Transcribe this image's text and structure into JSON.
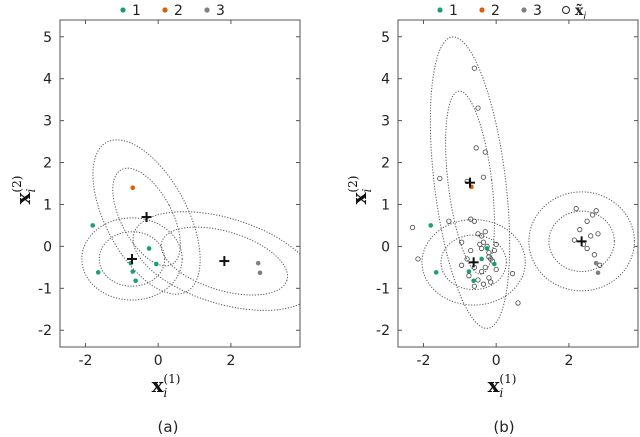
{
  "chart_data": [
    {
      "type": "scatter",
      "caption": "(a)",
      "xlabel": {
        "base": "x",
        "sub": "i",
        "sup": "(1)"
      },
      "ylabel": {
        "base": "x",
        "sub": "i",
        "sup": "(2)"
      },
      "xlim": [
        -2.7,
        3.9
      ],
      "ylim": [
        -2.4,
        5.4
      ],
      "xticks": [
        "-2",
        "0",
        "2"
      ],
      "yticks": [
        "-2",
        "-1",
        "0",
        "1",
        "2",
        "3",
        "4",
        "5"
      ],
      "legend": {
        "position": "top",
        "entries": [
          {
            "label": "1",
            "color": "#1b9e77",
            "marker": "dot"
          },
          {
            "label": "2",
            "color": "#d95f02",
            "marker": "dot"
          },
          {
            "label": "3",
            "color": "#7f7f7f",
            "marker": "dot"
          }
        ]
      },
      "series": [
        {
          "name": "1",
          "color": "#1b9e77",
          "x": [
            -1.8,
            -1.65,
            -0.75,
            -0.7,
            -0.62,
            -0.25,
            -0.05
          ],
          "y": [
            0.5,
            -0.62,
            -0.4,
            -0.6,
            -0.82,
            -0.05,
            -0.42
          ]
        },
        {
          "name": "2",
          "color": "#d95f02",
          "x": [
            -0.7
          ],
          "y": [
            1.4
          ]
        },
        {
          "name": "3",
          "color": "#7f7f7f",
          "x": [
            2.75,
            2.8
          ],
          "y": [
            -0.4,
            -0.63
          ]
        }
      ],
      "centers": [
        {
          "x": -0.72,
          "y": -0.3
        },
        {
          "x": -0.32,
          "y": 0.7
        },
        {
          "x": 1.82,
          "y": -0.35
        }
      ],
      "ellipses": [
        {
          "cx": -0.72,
          "cy": -0.3,
          "rx": 0.9,
          "ry": 0.65,
          "angle": 0
        },
        {
          "cx": -0.72,
          "cy": -0.3,
          "rx": 1.38,
          "ry": 0.98,
          "angle": 0
        },
        {
          "cx": -0.32,
          "cy": 0.7,
          "rx": 0.7,
          "ry": 1.28,
          "angle": -28
        },
        {
          "cx": -0.32,
          "cy": 0.7,
          "rx": 1.12,
          "ry": 2.02,
          "angle": -28
        },
        {
          "cx": 1.82,
          "cy": -0.35,
          "rx": 1.8,
          "ry": 0.7,
          "angle": 17
        },
        {
          "cx": 1.82,
          "cy": -0.35,
          "rx": 2.6,
          "ry": 1.02,
          "angle": 17
        }
      ]
    },
    {
      "type": "scatter",
      "caption": "(b)",
      "xlabel": {
        "base": "x",
        "sub": "i",
        "sup": "(1)"
      },
      "ylabel": {
        "base": "x",
        "sub": "i",
        "sup": "(2)"
      },
      "xlim": [
        -2.7,
        3.9
      ],
      "ylim": [
        -2.4,
        5.4
      ],
      "xticks": [
        "-2",
        "0",
        "2"
      ],
      "yticks": [
        "-2",
        "-1",
        "0",
        "1",
        "2",
        "3",
        "4",
        "5"
      ],
      "legend": {
        "position": "top",
        "entries": [
          {
            "label": "1",
            "color": "#1b9e77",
            "marker": "dot"
          },
          {
            "label": "2",
            "color": "#d95f02",
            "marker": "dot"
          },
          {
            "label": "3",
            "color": "#7f7f7f",
            "marker": "dot"
          },
          {
            "label": "x̃",
            "sub": "i",
            "color": "#222222",
            "marker": "circle"
          }
        ]
      },
      "series": [
        {
          "name": "1",
          "color": "#1b9e77",
          "x": [
            -1.8,
            -1.65,
            -0.75,
            -0.62,
            -0.25,
            -0.05,
            -0.4
          ],
          "y": [
            0.5,
            -0.62,
            -0.6,
            -0.82,
            -0.05,
            -0.42,
            -0.3
          ]
        },
        {
          "name": "2",
          "color": "#d95f02",
          "x": [
            -0.68
          ],
          "y": [
            1.42
          ]
        },
        {
          "name": "3",
          "color": "#7f7f7f",
          "x": [
            2.75,
            2.8
          ],
          "y": [
            -0.4,
            -0.63
          ]
        }
      ],
      "samples": {
        "x": [
          -0.6,
          -0.5,
          -0.55,
          -0.3,
          -0.35,
          -0.8,
          -1.55,
          -2.3,
          -2.15,
          -1.3,
          -0.95,
          -0.7,
          -0.6,
          -0.5,
          -0.45,
          -0.4,
          -0.35,
          -0.3,
          -0.25,
          -0.2,
          -0.15,
          -0.1,
          -0.05,
          0.0,
          0.0,
          -0.75,
          -0.6,
          -0.5,
          -0.4,
          -0.3,
          -0.2,
          -0.8,
          -0.6,
          -0.35,
          -0.15,
          -0.7,
          -0.95,
          -0.4,
          -0.2,
          0.45,
          0.6,
          2.2,
          2.5,
          2.65,
          2.75,
          2.3,
          2.15,
          2.4,
          2.6,
          2.8,
          2.5,
          2.7,
          2.85
        ],
        "y": [
          4.25,
          3.3,
          2.35,
          2.25,
          1.65,
          1.55,
          1.62,
          0.45,
          -0.3,
          0.6,
          0.1,
          0.65,
          0.6,
          0.3,
          0.05,
          -0.05,
          0.1,
          0.35,
          0.0,
          -0.15,
          -0.3,
          -0.35,
          -0.1,
          0.05,
          -0.55,
          -0.7,
          -0.95,
          -0.8,
          -0.6,
          -0.5,
          -0.75,
          -0.3,
          -0.5,
          -0.9,
          -0.85,
          -0.1,
          -0.45,
          0.25,
          -0.25,
          -0.65,
          -1.35,
          0.9,
          0.6,
          0.75,
          0.85,
          0.4,
          0.15,
          0.05,
          0.25,
          0.3,
          -0.05,
          -0.2,
          -0.45
        ]
      },
      "centers": [
        {
          "x": -0.72,
          "y": 1.52
        },
        {
          "x": -0.62,
          "y": -0.38
        },
        {
          "x": 2.35,
          "y": 0.12
        }
      ],
      "ellipses": [
        {
          "cx": -0.72,
          "cy": 1.52,
          "rx": 0.6,
          "ry": 2.2,
          "angle": -7
        },
        {
          "cx": -0.72,
          "cy": 1.52,
          "rx": 0.98,
          "ry": 3.5,
          "angle": -7
        },
        {
          "cx": -0.62,
          "cy": -0.38,
          "rx": 0.9,
          "ry": 0.65,
          "angle": 0
        },
        {
          "cx": -0.62,
          "cy": -0.38,
          "rx": 1.42,
          "ry": 1.02,
          "angle": 0
        },
        {
          "cx": 2.35,
          "cy": 0.12,
          "rx": 0.9,
          "ry": 0.72,
          "angle": 0
        },
        {
          "cx": 2.35,
          "cy": 0.12,
          "rx": 1.45,
          "ry": 1.18,
          "angle": 0
        }
      ]
    }
  ]
}
